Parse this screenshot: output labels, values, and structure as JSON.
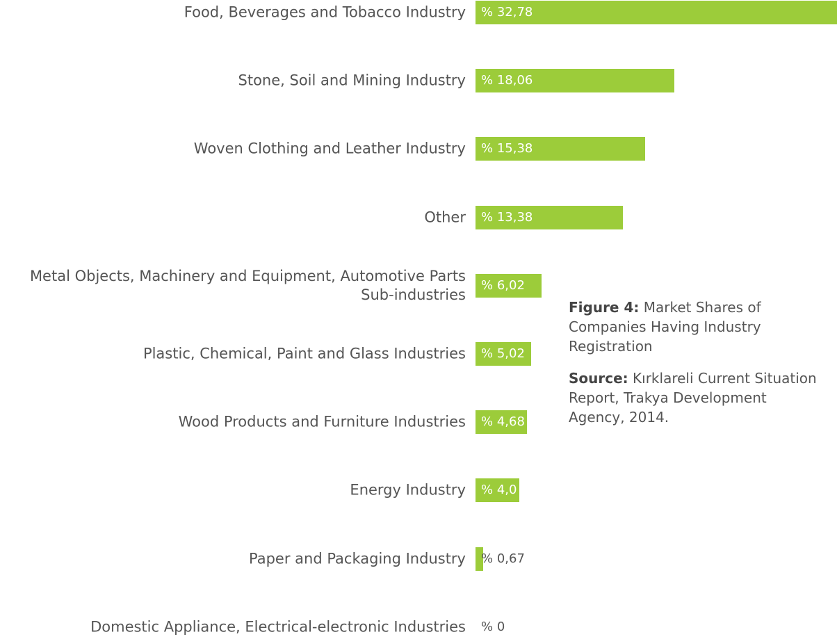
{
  "chart_data": {
    "type": "bar",
    "orientation": "horizontal",
    "categories": [
      "Food, Beverages and Tobacco Industry",
      "Stone, Soil and Mining Industry",
      "Woven Clothing and Leather Industry",
      "Other",
      "Metal Objects, Machinery and Equipment, Automotive Parts Sub-industries",
      "Plastic, Chemical, Paint and Glass Industries",
      "Wood Products and Furniture Industries",
      "Energy Industry",
      "Paper and Packaging Industry",
      "Domestic Appliance, Electrical-electronic Industries"
    ],
    "values": [
      32.78,
      18.06,
      15.38,
      13.38,
      6.02,
      5.02,
      4.68,
      4,
      0.67,
      0
    ],
    "value_labels": [
      "% 32,78",
      "% 18,06",
      "% 15,38",
      "% 13,38",
      "% 6,02",
      "% 5,02",
      "% 4,68",
      "% 4,0",
      "% 0,67",
      "% 0"
    ],
    "color": "#9ccc3a"
  },
  "caption": {
    "figure_label": "Figure 4:",
    "figure_text": "Market Shares of Companies Having Industry Registration",
    "source_label": "Source:",
    "source_text": "Kırklareli Current Situation Report, Trakya Development Agency, 2014."
  }
}
